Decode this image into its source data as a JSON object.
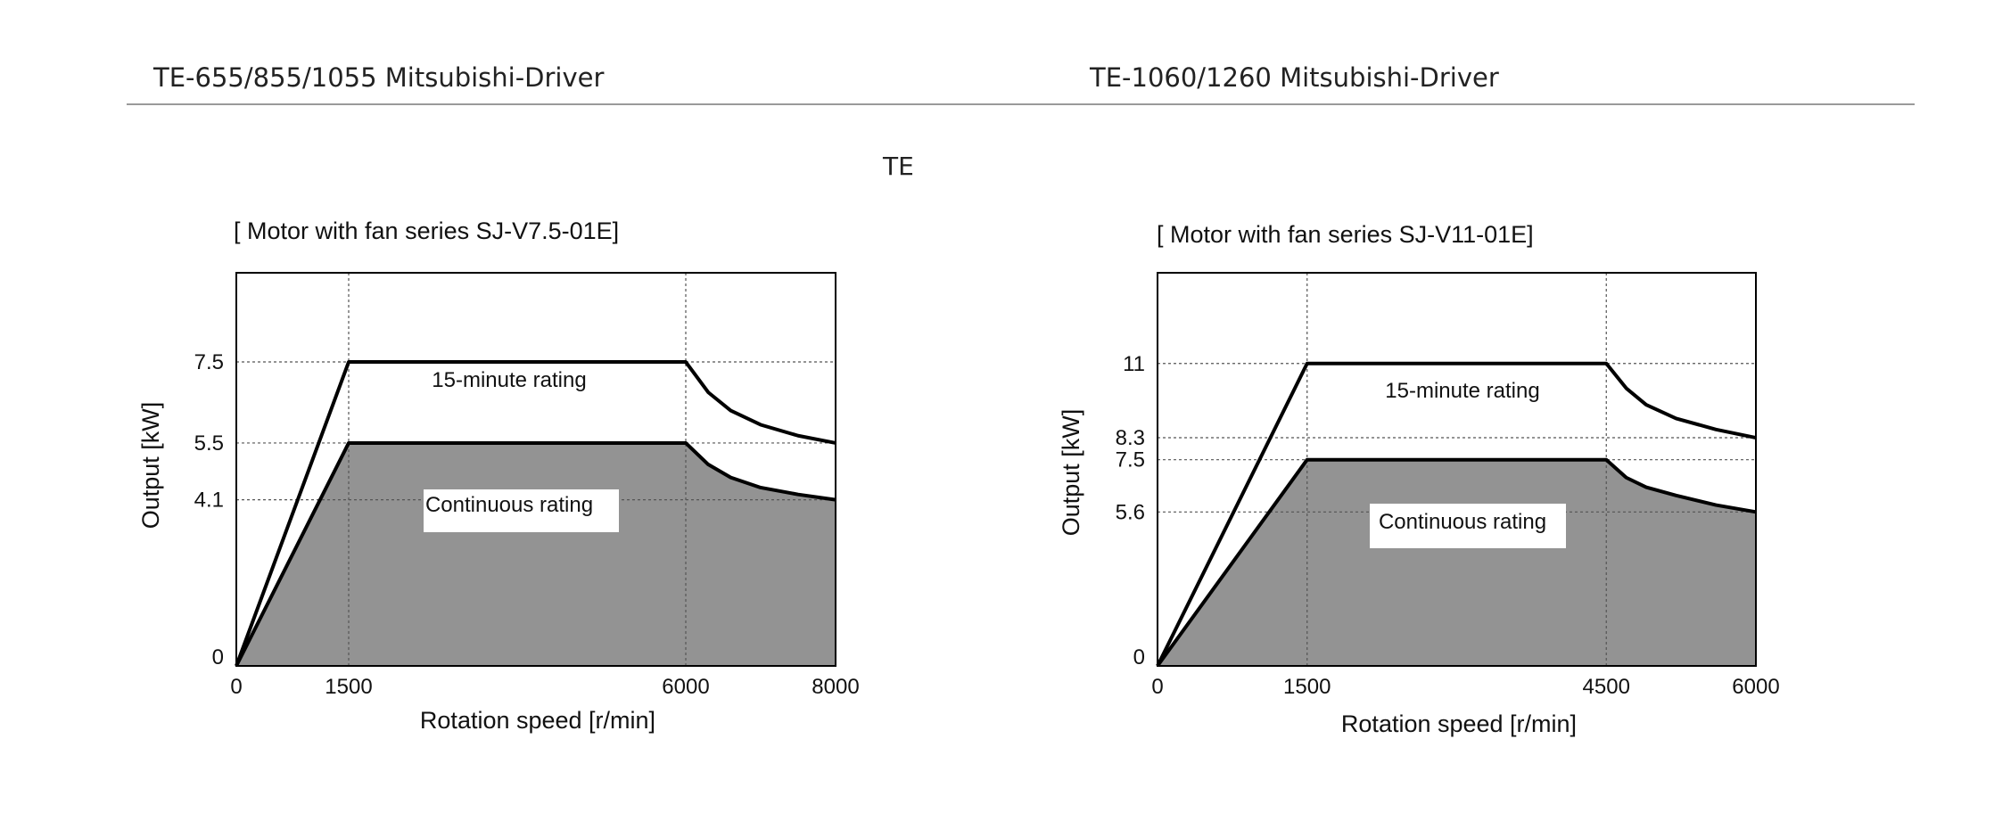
{
  "header": {
    "left_title": "TE-655/855/1055 Mitsubishi-Driver",
    "right_title": "TE-1060/1260  Mitsubishi-Driver",
    "center_label": "TE"
  },
  "colors": {
    "fill": "#939393",
    "line": "#000000",
    "grid": "#555555"
  },
  "chart_data": [
    {
      "type": "area",
      "title": "[ Motor with fan series    SJ-V7.5-01E]",
      "xlabel": "Rotation speed [r/min]",
      "ylabel": "Output [kW]",
      "xlim": [
        0,
        8000
      ],
      "ylim": [
        0,
        9.7
      ],
      "x_ticks": [
        0,
        1500,
        6000,
        8000
      ],
      "x_tick_labels": [
        "0",
        "1500",
        "6000",
        "8000"
      ],
      "y_ticks": [
        0,
        4.1,
        5.5,
        7.5
      ],
      "y_tick_labels": [
        "0",
        "4.1",
        "5.5",
        "7.5"
      ],
      "grid_x": [
        1500,
        6000
      ],
      "grid_y": [
        4.1,
        5.5,
        7.5
      ],
      "series": [
        {
          "name": "15-minute rating",
          "x": [
            0,
            1500,
            6000,
            6300,
            6600,
            7000,
            7500,
            8000
          ],
          "y": [
            0,
            7.5,
            7.5,
            6.75,
            6.3,
            5.95,
            5.68,
            5.5
          ]
        },
        {
          "name": "Continuous rating",
          "x": [
            0,
            1500,
            6000,
            6300,
            6600,
            7000,
            7500,
            8000
          ],
          "y": [
            0,
            5.5,
            5.5,
            4.97,
            4.65,
            4.4,
            4.23,
            4.1
          ],
          "filled": true
        }
      ],
      "labels": {
        "upper": "15-minute rating",
        "lower": "Continuous rating"
      }
    },
    {
      "type": "area",
      "title": "[ Motor with fan series    SJ-V11-01E]",
      "xlabel": "Rotation speed [r/min]",
      "ylabel": "Output [kW]",
      "xlim": [
        0,
        6000
      ],
      "ylim": [
        0,
        14.3
      ],
      "x_ticks": [
        0,
        1500,
        4500,
        6000
      ],
      "x_tick_labels": [
        "0",
        "1500",
        "4500",
        "6000"
      ],
      "y_ticks": [
        0,
        5.6,
        7.5,
        8.3,
        11
      ],
      "y_tick_labels": [
        "0",
        "5.6",
        "7.5",
        "8.3",
        "11"
      ],
      "grid_x": [
        1500,
        4500
      ],
      "grid_y": [
        5.6,
        7.5,
        8.3,
        11
      ],
      "series": [
        {
          "name": "15-minute rating",
          "x": [
            0,
            1500,
            4500,
            4700,
            4900,
            5200,
            5600,
            6000
          ],
          "y": [
            0,
            11,
            11,
            10.1,
            9.5,
            9.0,
            8.6,
            8.3
          ]
        },
        {
          "name": "Continuous rating",
          "x": [
            0,
            1500,
            4500,
            4700,
            4900,
            5200,
            5600,
            6000
          ],
          "y": [
            0,
            7.5,
            7.5,
            6.85,
            6.5,
            6.2,
            5.85,
            5.6
          ],
          "filled": true
        }
      ],
      "labels": {
        "upper": "15-minute rating",
        "lower": "Continuous rating"
      }
    }
  ]
}
